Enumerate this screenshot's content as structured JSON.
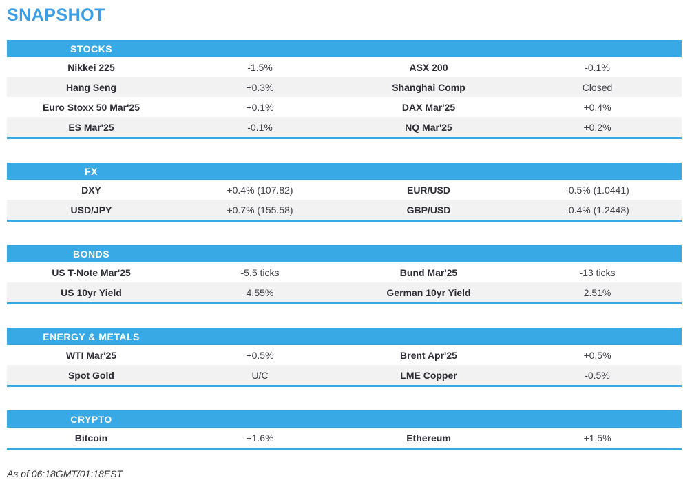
{
  "title": "SNAPSHOT",
  "colors": {
    "accent_blue": "#38a9e4",
    "title_blue": "#3b9fe8",
    "row_alt": "#f2f2f2",
    "label_text": "#2d2d35",
    "value_text": "#40404a"
  },
  "sections": [
    {
      "label": "STOCKS",
      "rows": [
        {
          "label1": "Nikkei 225",
          "value1": "-1.5%",
          "label2": "ASX 200",
          "value2": "-0.1%"
        },
        {
          "label1": "Hang Seng",
          "value1": "+0.3%",
          "label2": "Shanghai Comp",
          "value2": "Closed"
        },
        {
          "label1": "Euro Stoxx 50 Mar'25",
          "value1": "+0.1%",
          "label2": "DAX Mar'25",
          "value2": "+0.4%"
        },
        {
          "label1": "ES Mar'25",
          "value1": "-0.1%",
          "label2": "NQ Mar'25",
          "value2": "+0.2%"
        }
      ]
    },
    {
      "label": "FX",
      "rows": [
        {
          "label1": "DXY",
          "value1": "+0.4% (107.82)",
          "label2": "EUR/USD",
          "value2": "-0.5% (1.0441)"
        },
        {
          "label1": "USD/JPY",
          "value1": "+0.7% (155.58)",
          "label2": "GBP/USD",
          "value2": "-0.4% (1.2448)"
        }
      ]
    },
    {
      "label": "BONDS",
      "rows": [
        {
          "label1": "US T-Note Mar'25",
          "value1": "-5.5 ticks",
          "label2": "Bund Mar'25",
          "value2": "-13 ticks"
        },
        {
          "label1": "US 10yr Yield",
          "value1": "4.55%",
          "label2": "German 10yr Yield",
          "value2": "2.51%"
        }
      ]
    },
    {
      "label": "ENERGY & METALS",
      "rows": [
        {
          "label1": "WTI Mar'25",
          "value1": "+0.5%",
          "label2": "Brent Apr'25",
          "value2": "+0.5%"
        },
        {
          "label1": "Spot Gold",
          "value1": "U/C",
          "label2": "LME Copper",
          "value2": "-0.5%"
        }
      ]
    },
    {
      "label": "CRYPTO",
      "rows": [
        {
          "label1": "Bitcoin",
          "value1": "+1.6%",
          "label2": "Ethereum",
          "value2": "+1.5%"
        }
      ]
    }
  ],
  "footer": {
    "as_of": "As of 06:18GMT/01:18EST"
  }
}
